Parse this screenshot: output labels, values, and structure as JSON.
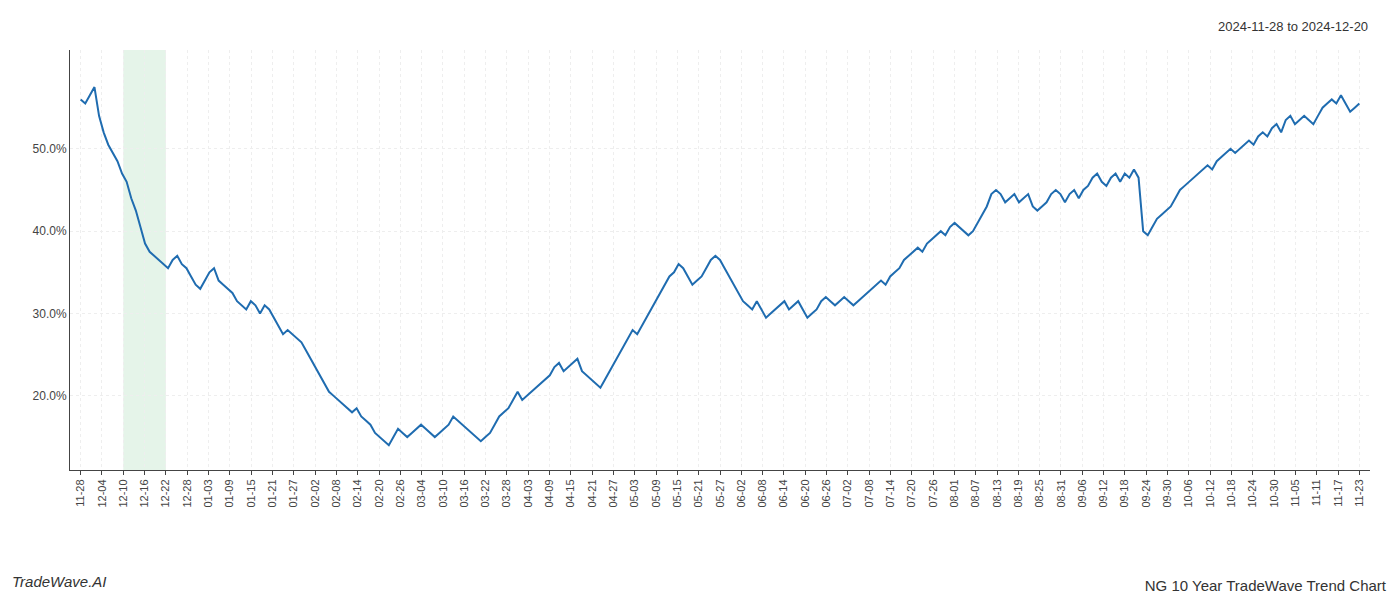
{
  "chart_data": {
    "type": "line",
    "title": "NG 10 Year TradeWave Trend Chart",
    "subtitle": "2024-11-28 to 2024-12-20",
    "annotations": [
      "TradeWave.AI"
    ],
    "color": "#1f6cb0",
    "highlight": {
      "from": 2,
      "to": 4,
      "color": "#d4edda"
    },
    "grid": true,
    "xlim": [
      -0.5,
      60.5
    ],
    "xticks": [
      {
        "value": 0,
        "label": "11-28"
      },
      {
        "value": 1,
        "label": "12-04"
      },
      {
        "value": 2,
        "label": "12-10"
      },
      {
        "value": 3,
        "label": "12-16"
      },
      {
        "value": 4,
        "label": "12-22"
      },
      {
        "value": 5,
        "label": "12-28"
      },
      {
        "value": 6,
        "label": "01-03"
      },
      {
        "value": 7,
        "label": "01-09"
      },
      {
        "value": 8,
        "label": "01-15"
      },
      {
        "value": 9,
        "label": "01-21"
      },
      {
        "value": 10,
        "label": "01-27"
      },
      {
        "value": 11,
        "label": "02-02"
      },
      {
        "value": 12,
        "label": "02-08"
      },
      {
        "value": 13,
        "label": "02-14"
      },
      {
        "value": 14,
        "label": "02-20"
      },
      {
        "value": 15,
        "label": "02-26"
      },
      {
        "value": 16,
        "label": "03-04"
      },
      {
        "value": 17,
        "label": "03-10"
      },
      {
        "value": 18,
        "label": "03-16"
      },
      {
        "value": 19,
        "label": "03-22"
      },
      {
        "value": 20,
        "label": "03-28"
      },
      {
        "value": 21,
        "label": "04-03"
      },
      {
        "value": 22,
        "label": "04-09"
      },
      {
        "value": 23,
        "label": "04-15"
      },
      {
        "value": 24,
        "label": "04-21"
      },
      {
        "value": 25,
        "label": "04-27"
      },
      {
        "value": 26,
        "label": "05-03"
      },
      {
        "value": 27,
        "label": "05-09"
      },
      {
        "value": 28,
        "label": "05-15"
      },
      {
        "value": 29,
        "label": "05-21"
      },
      {
        "value": 30,
        "label": "05-27"
      },
      {
        "value": 31,
        "label": "06-02"
      },
      {
        "value": 32,
        "label": "06-08"
      },
      {
        "value": 33,
        "label": "06-14"
      },
      {
        "value": 34,
        "label": "06-20"
      },
      {
        "value": 35,
        "label": "06-26"
      },
      {
        "value": 36,
        "label": "07-02"
      },
      {
        "value": 37,
        "label": "07-08"
      },
      {
        "value": 38,
        "label": "07-14"
      },
      {
        "value": 39,
        "label": "07-20"
      },
      {
        "value": 40,
        "label": "07-26"
      },
      {
        "value": 41,
        "label": "08-01"
      },
      {
        "value": 42,
        "label": "08-07"
      },
      {
        "value": 43,
        "label": "08-13"
      },
      {
        "value": 44,
        "label": "08-19"
      },
      {
        "value": 45,
        "label": "08-25"
      },
      {
        "value": 46,
        "label": "08-31"
      },
      {
        "value": 47,
        "label": "09-06"
      },
      {
        "value": 48,
        "label": "09-12"
      },
      {
        "value": 49,
        "label": "09-18"
      },
      {
        "value": 50,
        "label": "09-24"
      },
      {
        "value": 51,
        "label": "09-30"
      },
      {
        "value": 52,
        "label": "10-06"
      },
      {
        "value": 53,
        "label": "10-12"
      },
      {
        "value": 54,
        "label": "10-18"
      },
      {
        "value": 55,
        "label": "10-24"
      },
      {
        "value": 56,
        "label": "10-30"
      },
      {
        "value": 57,
        "label": "11-05"
      },
      {
        "value": 58,
        "label": "11-11"
      },
      {
        "value": 59,
        "label": "11-17"
      },
      {
        "value": 60,
        "label": "11-23"
      }
    ],
    "ylim": [
      11,
      62
    ],
    "yticks": [
      {
        "value": 20,
        "label": "20.0%"
      },
      {
        "value": 30,
        "label": "30.0%"
      },
      {
        "value": 40,
        "label": "40.0%"
      },
      {
        "value": 50,
        "label": "50.0%"
      }
    ],
    "values": [
      56.0,
      55.5,
      56.5,
      57.5,
      54.0,
      52.0,
      50.5,
      49.5,
      48.5,
      47.0,
      46.0,
      44.0,
      42.5,
      40.5,
      38.5,
      37.5,
      37.0,
      36.5,
      36.0,
      35.5,
      36.5,
      37.0,
      36.0,
      35.5,
      34.5,
      33.5,
      33.0,
      34.0,
      35.0,
      35.5,
      34.0,
      33.5,
      33.0,
      32.5,
      31.5,
      31.0,
      30.5,
      31.5,
      31.0,
      30.0,
      31.0,
      30.5,
      29.5,
      28.5,
      27.5,
      28.0,
      27.5,
      27.0,
      26.5,
      25.5,
      24.5,
      23.5,
      22.5,
      21.5,
      20.5,
      20.0,
      19.5,
      19.0,
      18.5,
      18.0,
      18.5,
      17.5,
      17.0,
      16.5,
      15.5,
      15.0,
      14.5,
      14.0,
      15.0,
      16.0,
      15.5,
      15.0,
      15.5,
      16.0,
      16.5,
      16.0,
      15.5,
      15.0,
      15.5,
      16.0,
      16.5,
      17.5,
      17.0,
      16.5,
      16.0,
      15.5,
      15.0,
      14.5,
      15.0,
      15.5,
      16.5,
      17.5,
      18.0,
      18.5,
      19.5,
      20.5,
      19.5,
      20.0,
      20.5,
      21.0,
      21.5,
      22.0,
      22.5,
      23.5,
      24.0,
      23.0,
      23.5,
      24.0,
      24.5,
      23.0,
      22.5,
      22.0,
      21.5,
      21.0,
      22.0,
      23.0,
      24.0,
      25.0,
      26.0,
      27.0,
      28.0,
      27.5,
      28.5,
      29.5,
      30.5,
      31.5,
      32.5,
      33.5,
      34.5,
      35.0,
      36.0,
      35.5,
      34.5,
      33.5,
      34.0,
      34.5,
      35.5,
      36.5,
      37.0,
      36.5,
      35.5,
      34.5,
      33.5,
      32.5,
      31.5,
      31.0,
      30.5,
      31.5,
      30.5,
      29.5,
      30.0,
      30.5,
      31.0,
      31.5,
      30.5,
      31.0,
      31.5,
      30.5,
      29.5,
      30.0,
      30.5,
      31.5,
      32.0,
      31.5,
      31.0,
      31.5,
      32.0,
      31.5,
      31.0,
      31.5,
      32.0,
      32.5,
      33.0,
      33.5,
      34.0,
      33.5,
      34.5,
      35.0,
      35.5,
      36.5,
      37.0,
      37.5,
      38.0,
      37.5,
      38.5,
      39.0,
      39.5,
      40.0,
      39.5,
      40.5,
      41.0,
      40.5,
      40.0,
      39.5,
      40.0,
      41.0,
      42.0,
      43.0,
      44.5,
      45.0,
      44.5,
      43.5,
      44.0,
      44.5,
      43.5,
      44.0,
      44.5,
      43.0,
      42.5,
      43.0,
      43.5,
      44.5,
      45.0,
      44.5,
      43.5,
      44.5,
      45.0,
      44.0,
      45.0,
      45.5,
      46.5,
      47.0,
      46.0,
      45.5,
      46.5,
      47.0,
      46.0,
      47.0,
      46.5,
      47.5,
      46.5,
      40.0,
      39.5,
      40.5,
      41.5,
      42.0,
      42.5,
      43.0,
      44.0,
      45.0,
      45.5,
      46.0,
      46.5,
      47.0,
      47.5,
      48.0,
      47.5,
      48.5,
      49.0,
      49.5,
      50.0,
      49.5,
      50.0,
      50.5,
      51.0,
      50.5,
      51.5,
      52.0,
      51.5,
      52.5,
      53.0,
      52.0,
      53.5,
      54.0,
      53.0,
      53.5,
      54.0,
      53.5,
      53.0,
      54.0,
      55.0,
      55.5,
      56.0,
      55.5,
      56.5,
      55.5,
      54.5,
      55.0,
      55.5
    ]
  }
}
